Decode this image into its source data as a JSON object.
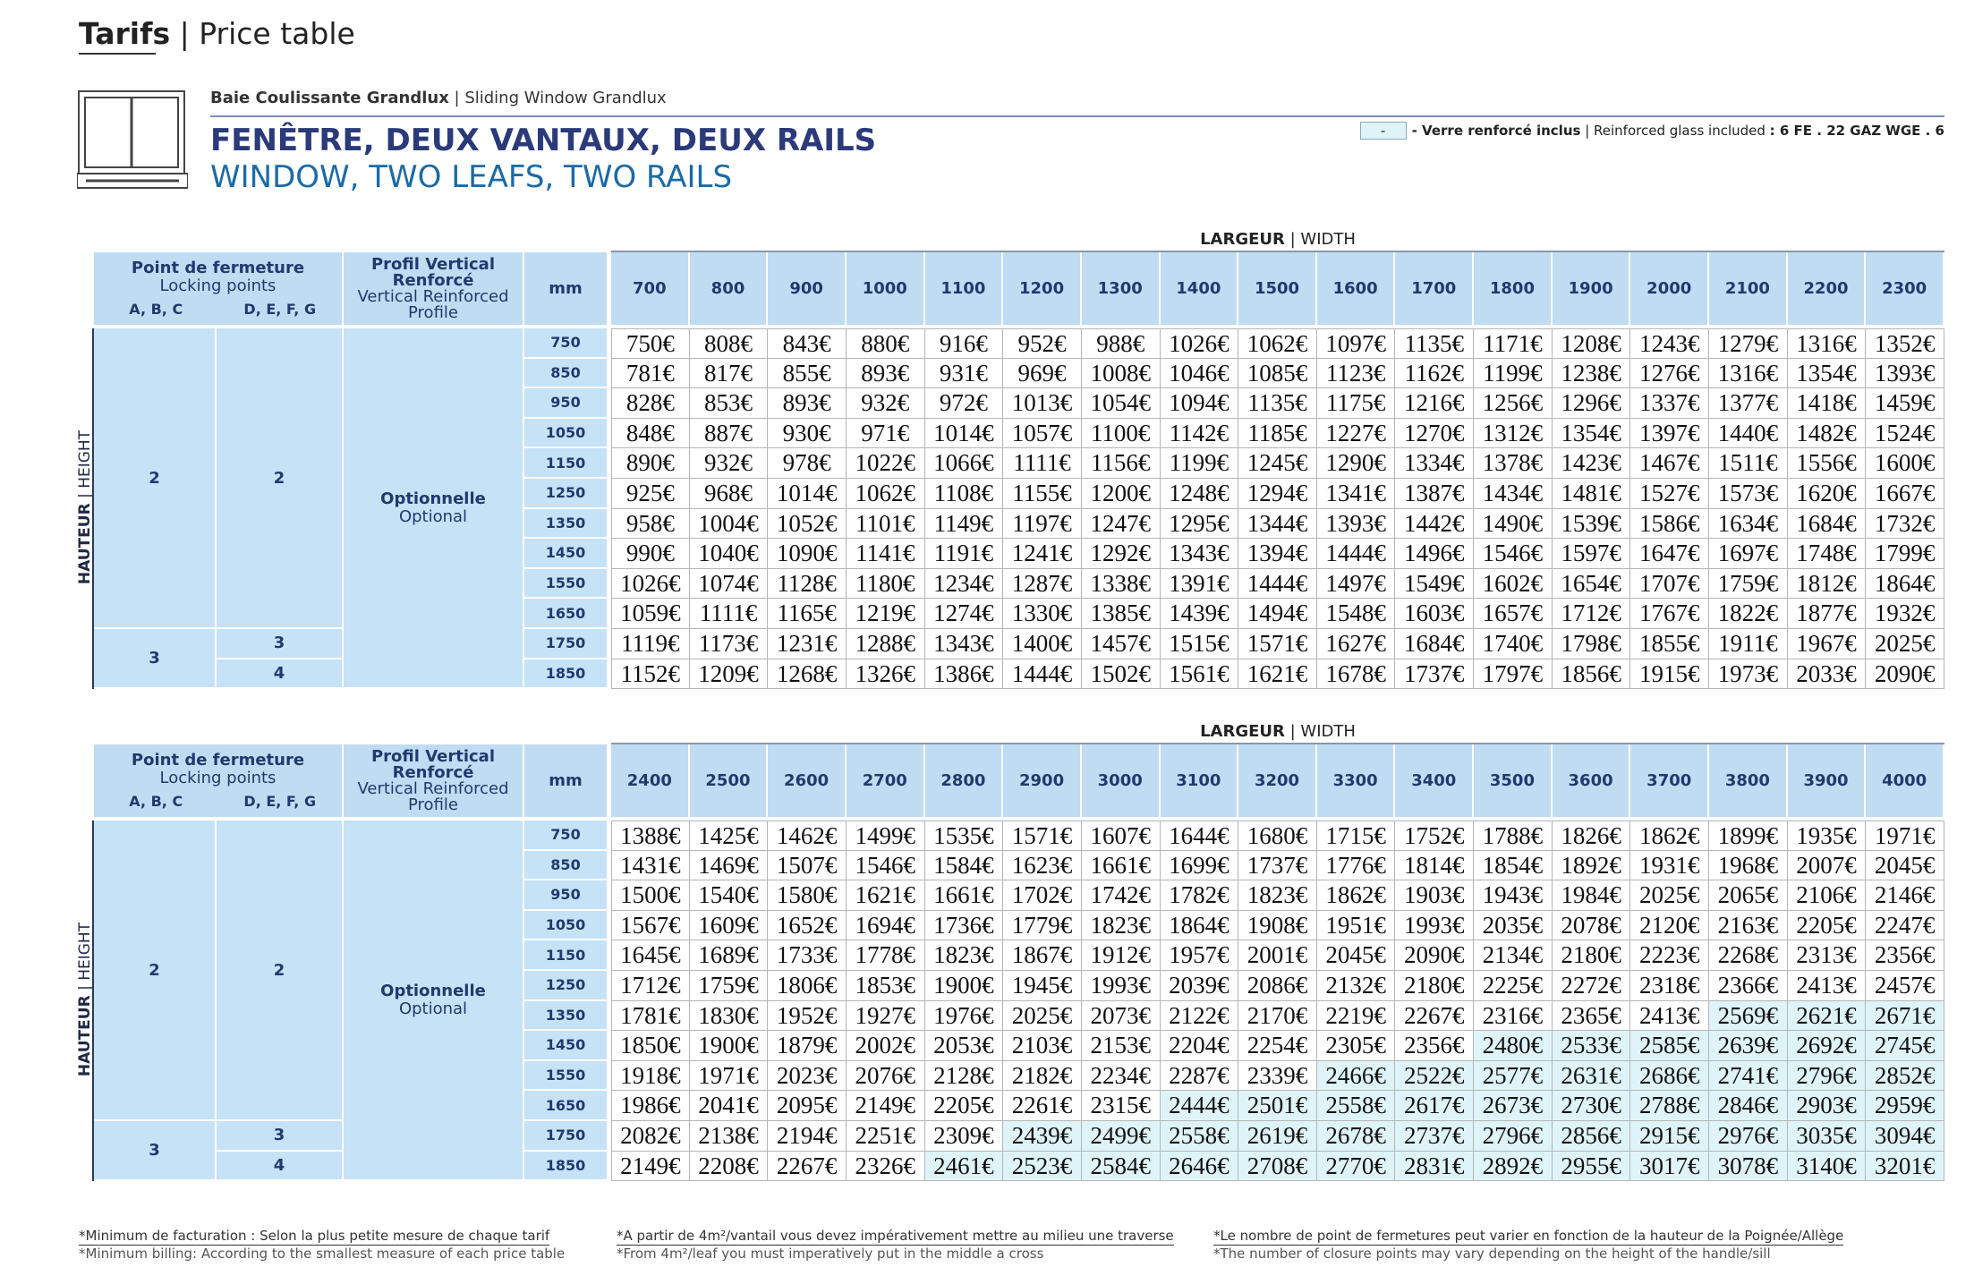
{
  "header": {
    "title": "Tarifs",
    "subtitle": "Price table"
  },
  "product": {
    "family": "Baie Coulissante Grandlux",
    "family_en": "Sliding Window Grandlux",
    "title": "FENÊTRE, DEUX VANTAUX, DEUX RAILS",
    "title_en": "WINDOW, TWO LEAFS, TWO RAILS"
  },
  "legend": {
    "swatch": "-",
    "label": "- Verre renforcé inclus",
    "label_en": "Reinforced glass included",
    "spec": ": 6 FE . 22 GAZ WGE . 6",
    "color": "#dff4f8"
  },
  "tables": [
    {
      "axis_label": "LARGEUR",
      "axis_label_en": "WIDTH",
      "locking_label": "Point de fermeture",
      "locking_label_en": "Locking points",
      "locking_groups": [
        "A, B, C",
        "D, E, F, G"
      ],
      "profile_label": "Profil Vertical Renforcé",
      "profile_label_en": "Vertical Reinforced Profile",
      "unit": "mm",
      "height_label": "HAUTEUR",
      "height_label_en": "HEIGHT",
      "profile": "Optionnelle",
      "profile_en": "Optional",
      "widths": [
        "700",
        "800",
        "900",
        "1000",
        "1100",
        "1200",
        "1300",
        "1400",
        "1500",
        "1600",
        "1700",
        "1800",
        "1900",
        "2000",
        "2100",
        "2200",
        "2300"
      ],
      "heights": [
        "750",
        "850",
        "950",
        "1050",
        "1150",
        "1250",
        "1350",
        "1450",
        "1550",
        "1650",
        "1750",
        "1850"
      ],
      "locking_abc": [
        "2",
        "2",
        "2",
        "2",
        "2",
        "2",
        "2",
        "2",
        "2",
        "2",
        "3",
        "3"
      ],
      "locking_defg": [
        "2",
        "2",
        "2",
        "2",
        "2",
        "2",
        "2",
        "2",
        "2",
        "2",
        "3",
        "4"
      ],
      "reinforced_from": [
        null,
        null,
        null,
        null,
        null,
        null,
        null,
        null,
        null,
        null,
        null,
        null
      ],
      "rows": [
        [
          "750€",
          "808€",
          "843€",
          "880€",
          "916€",
          "952€",
          "988€",
          "1026€",
          "1062€",
          "1097€",
          "1135€",
          "1171€",
          "1208€",
          "1243€",
          "1279€",
          "1316€",
          "1352€"
        ],
        [
          "781€",
          "817€",
          "855€",
          "893€",
          "931€",
          "969€",
          "1008€",
          "1046€",
          "1085€",
          "1123€",
          "1162€",
          "1199€",
          "1238€",
          "1276€",
          "1316€",
          "1354€",
          "1393€"
        ],
        [
          "828€",
          "853€",
          "893€",
          "932€",
          "972€",
          "1013€",
          "1054€",
          "1094€",
          "1135€",
          "1175€",
          "1216€",
          "1256€",
          "1296€",
          "1337€",
          "1377€",
          "1418€",
          "1459€"
        ],
        [
          "848€",
          "887€",
          "930€",
          "971€",
          "1014€",
          "1057€",
          "1100€",
          "1142€",
          "1185€",
          "1227€",
          "1270€",
          "1312€",
          "1354€",
          "1397€",
          "1440€",
          "1482€",
          "1524€"
        ],
        [
          "890€",
          "932€",
          "978€",
          "1022€",
          "1066€",
          "1111€",
          "1156€",
          "1199€",
          "1245€",
          "1290€",
          "1334€",
          "1378€",
          "1423€",
          "1467€",
          "1511€",
          "1556€",
          "1600€"
        ],
        [
          "925€",
          "968€",
          "1014€",
          "1062€",
          "1108€",
          "1155€",
          "1200€",
          "1248€",
          "1294€",
          "1341€",
          "1387€",
          "1434€",
          "1481€",
          "1527€",
          "1573€",
          "1620€",
          "1667€"
        ],
        [
          "958€",
          "1004€",
          "1052€",
          "1101€",
          "1149€",
          "1197€",
          "1247€",
          "1295€",
          "1344€",
          "1393€",
          "1442€",
          "1490€",
          "1539€",
          "1586€",
          "1634€",
          "1684€",
          "1732€"
        ],
        [
          "990€",
          "1040€",
          "1090€",
          "1141€",
          "1191€",
          "1241€",
          "1292€",
          "1343€",
          "1394€",
          "1444€",
          "1496€",
          "1546€",
          "1597€",
          "1647€",
          "1697€",
          "1748€",
          "1799€"
        ],
        [
          "1026€",
          "1074€",
          "1128€",
          "1180€",
          "1234€",
          "1287€",
          "1338€",
          "1391€",
          "1444€",
          "1497€",
          "1549€",
          "1602€",
          "1654€",
          "1707€",
          "1759€",
          "1812€",
          "1864€"
        ],
        [
          "1059€",
          "1111€",
          "1165€",
          "1219€",
          "1274€",
          "1330€",
          "1385€",
          "1439€",
          "1494€",
          "1548€",
          "1603€",
          "1657€",
          "1712€",
          "1767€",
          "1822€",
          "1877€",
          "1932€"
        ],
        [
          "1119€",
          "1173€",
          "1231€",
          "1288€",
          "1343€",
          "1400€",
          "1457€",
          "1515€",
          "1571€",
          "1627€",
          "1684€",
          "1740€",
          "1798€",
          "1855€",
          "1911€",
          "1967€",
          "2025€"
        ],
        [
          "1152€",
          "1209€",
          "1268€",
          "1326€",
          "1386€",
          "1444€",
          "1502€",
          "1561€",
          "1621€",
          "1678€",
          "1737€",
          "1797€",
          "1856€",
          "1915€",
          "1973€",
          "2033€",
          "2090€"
        ]
      ]
    },
    {
      "axis_label": "LARGEUR",
      "axis_label_en": "WIDTH",
      "locking_label": "Point de fermeture",
      "locking_label_en": "Locking points",
      "locking_groups": [
        "A, B, C",
        "D, E, F, G"
      ],
      "profile_label": "Profil Vertical Renforcé",
      "profile_label_en": "Vertical Reinforced Profile",
      "unit": "mm",
      "height_label": "HAUTEUR",
      "height_label_en": "HEIGHT",
      "profile": "Optionnelle",
      "profile_en": "Optional",
      "widths": [
        "2400",
        "2500",
        "2600",
        "2700",
        "2800",
        "2900",
        "3000",
        "3100",
        "3200",
        "3300",
        "3400",
        "3500",
        "3600",
        "3700",
        "3800",
        "3900",
        "4000"
      ],
      "heights": [
        "750",
        "850",
        "950",
        "1050",
        "1150",
        "1250",
        "1350",
        "1450",
        "1550",
        "1650",
        "1750",
        "1850"
      ],
      "locking_abc": [
        "2",
        "2",
        "2",
        "2",
        "2",
        "2",
        "2",
        "2",
        "2",
        "2",
        "3",
        "3"
      ],
      "locking_defg": [
        "2",
        "2",
        "2",
        "2",
        "2",
        "2",
        "2",
        "2",
        "2",
        "2",
        "3",
        "4"
      ],
      "reinforced_from": [
        null,
        null,
        null,
        null,
        null,
        null,
        14,
        11,
        9,
        7,
        5,
        4
      ],
      "rows": [
        [
          "1388€",
          "1425€",
          "1462€",
          "1499€",
          "1535€",
          "1571€",
          "1607€",
          "1644€",
          "1680€",
          "1715€",
          "1752€",
          "1788€",
          "1826€",
          "1862€",
          "1899€",
          "1935€",
          "1971€"
        ],
        [
          "1431€",
          "1469€",
          "1507€",
          "1546€",
          "1584€",
          "1623€",
          "1661€",
          "1699€",
          "1737€",
          "1776€",
          "1814€",
          "1854€",
          "1892€",
          "1931€",
          "1968€",
          "2007€",
          "2045€"
        ],
        [
          "1500€",
          "1540€",
          "1580€",
          "1621€",
          "1661€",
          "1702€",
          "1742€",
          "1782€",
          "1823€",
          "1862€",
          "1903€",
          "1943€",
          "1984€",
          "2025€",
          "2065€",
          "2106€",
          "2146€"
        ],
        [
          "1567€",
          "1609€",
          "1652€",
          "1694€",
          "1736€",
          "1779€",
          "1823€",
          "1864€",
          "1908€",
          "1951€",
          "1993€",
          "2035€",
          "2078€",
          "2120€",
          "2163€",
          "2205€",
          "2247€"
        ],
        [
          "1645€",
          "1689€",
          "1733€",
          "1778€",
          "1823€",
          "1867€",
          "1912€",
          "1957€",
          "2001€",
          "2045€",
          "2090€",
          "2134€",
          "2180€",
          "2223€",
          "2268€",
          "2313€",
          "2356€"
        ],
        [
          "1712€",
          "1759€",
          "1806€",
          "1853€",
          "1900€",
          "1945€",
          "1993€",
          "2039€",
          "2086€",
          "2132€",
          "2180€",
          "2225€",
          "2272€",
          "2318€",
          "2366€",
          "2413€",
          "2457€"
        ],
        [
          "1781€",
          "1830€",
          "1952€",
          "1927€",
          "1976€",
          "2025€",
          "2073€",
          "2122€",
          "2170€",
          "2219€",
          "2267€",
          "2316€",
          "2365€",
          "2413€",
          "2569€",
          "2621€",
          "2671€"
        ],
        [
          "1850€",
          "1900€",
          "1879€",
          "2002€",
          "2053€",
          "2103€",
          "2153€",
          "2204€",
          "2254€",
          "2305€",
          "2356€",
          "2480€",
          "2533€",
          "2585€",
          "2639€",
          "2692€",
          "2745€"
        ],
        [
          "1918€",
          "1971€",
          "2023€",
          "2076€",
          "2128€",
          "2182€",
          "2234€",
          "2287€",
          "2339€",
          "2466€",
          "2522€",
          "2577€",
          "2631€",
          "2686€",
          "2741€",
          "2796€",
          "2852€"
        ],
        [
          "1986€",
          "2041€",
          "2095€",
          "2149€",
          "2205€",
          "2261€",
          "2315€",
          "2444€",
          "2501€",
          "2558€",
          "2617€",
          "2673€",
          "2730€",
          "2788€",
          "2846€",
          "2903€",
          "2959€"
        ],
        [
          "2082€",
          "2138€",
          "2194€",
          "2251€",
          "2309€",
          "2439€",
          "2499€",
          "2558€",
          "2619€",
          "2678€",
          "2737€",
          "2796€",
          "2856€",
          "2915€",
          "2976€",
          "3035€",
          "3094€"
        ],
        [
          "2149€",
          "2208€",
          "2267€",
          "2326€",
          "2461€",
          "2523€",
          "2584€",
          "2646€",
          "2708€",
          "2770€",
          "2831€",
          "2892€",
          "2955€",
          "3017€",
          "3078€",
          "3140€",
          "3201€"
        ]
      ]
    }
  ],
  "footnotes": [
    {
      "text": "*Minimum de facturation : Selon la plus petite mesure de chaque tarif",
      "text_en": "*Minimum billing: According to the smallest measure of each price table"
    },
    {
      "text": "*A partir de 4m²/vantail vous devez impérativement mettre au milieu une traverse",
      "text_en": "*From 4m²/leaf you must imperatively put in the middle a cross"
    },
    {
      "text": "*Le nombre de point de fermetures peut varier en fonction de la hauteur de la Poignée/Allège",
      "text_en": "*The number of closure points may vary depending on the height of the handle/sill"
    }
  ]
}
